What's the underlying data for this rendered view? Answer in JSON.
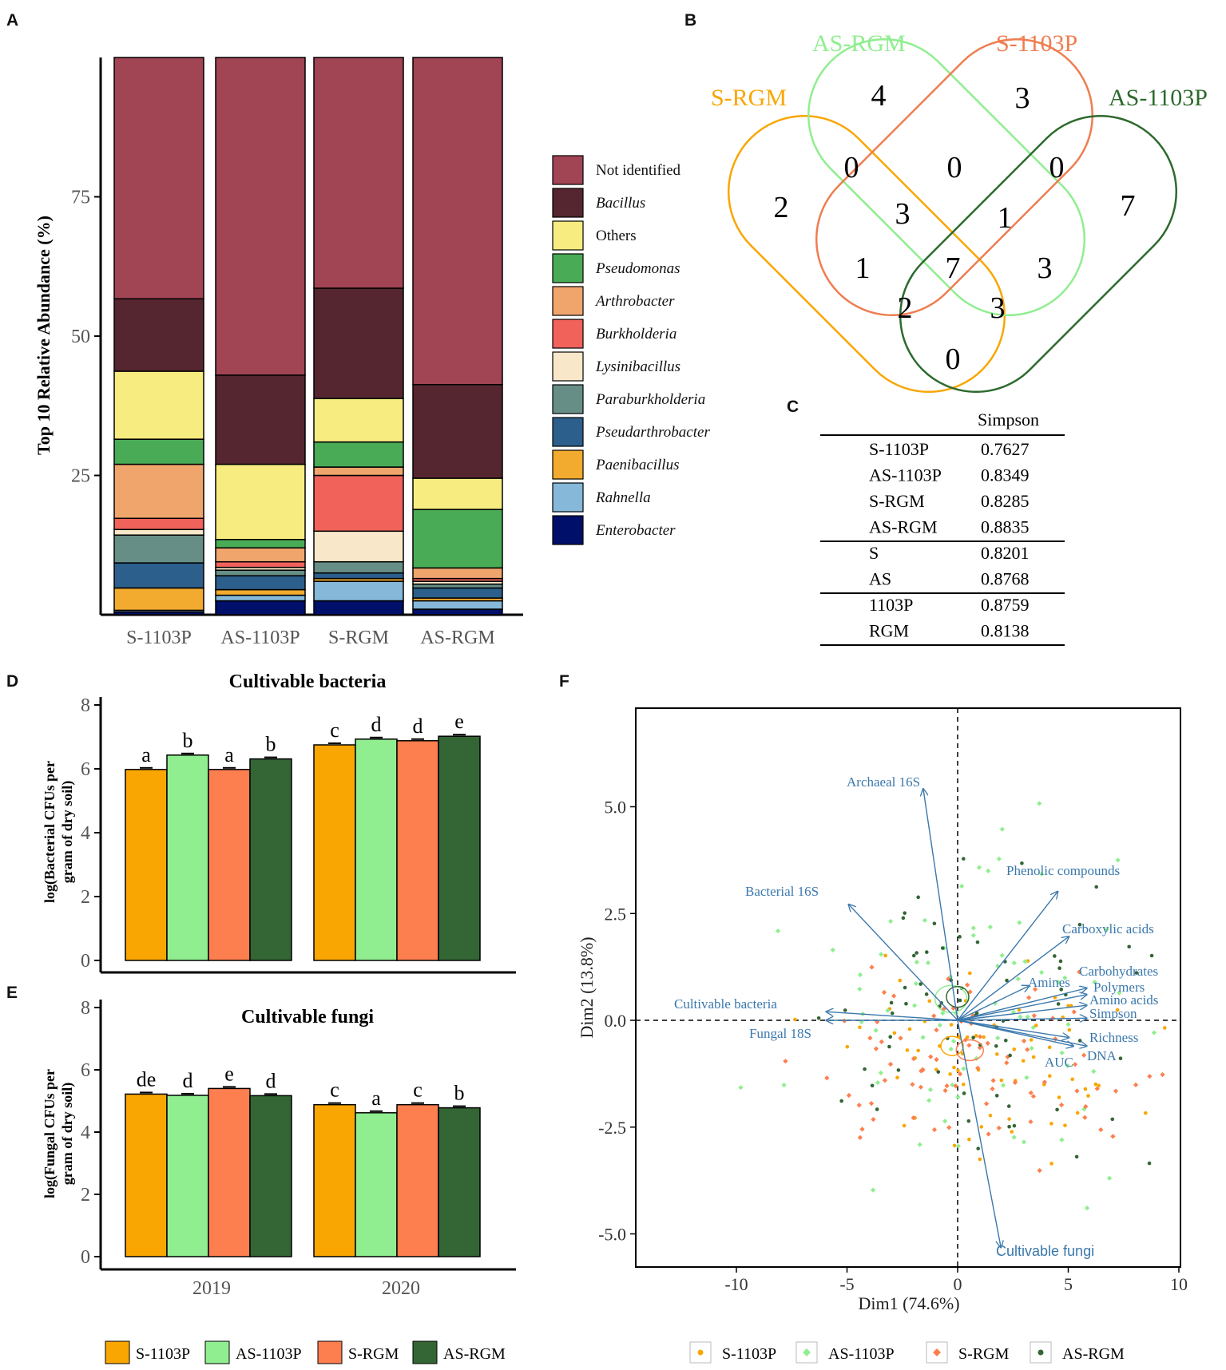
{
  "panels": {
    "A": "A",
    "B": "B",
    "C": "C",
    "D": "D",
    "E": "E",
    "F": "F"
  },
  "colors": {
    "S-1103P": "#f9a602",
    "AS-1103P": "#90ee90",
    "S-RGM": "#fd7f4f",
    "AS-RGM": "#336634",
    "vector": "#3a78ac"
  },
  "chart_data": [
    {
      "id": "A",
      "type": "bar",
      "stacked": true,
      "ylabel": "Top 10 Relative Abundance (%)",
      "yticks": [
        25,
        50,
        75
      ],
      "ylim": [
        0,
        100
      ],
      "categories": [
        "S-1103P",
        "AS-1103P",
        "S-RGM",
        "AS-RGM"
      ],
      "series": [
        {
          "name": "Enterobacter",
          "italic": true,
          "color": "#000f69",
          "values": [
            0.5,
            2.5,
            2.5,
            1.0
          ]
        },
        {
          "name": "Rahnella",
          "italic": true,
          "color": "#86b8d9",
          "values": [
            0.3,
            1.0,
            3.5,
            1.5
          ]
        },
        {
          "name": "Paenibacillus",
          "italic": true,
          "color": "#f2ab2e",
          "values": [
            4.0,
            1.0,
            0.5,
            0.5
          ]
        },
        {
          "name": "Pseudarthrobacter",
          "italic": true,
          "color": "#2c5f8b",
          "values": [
            4.5,
            2.5,
            1.0,
            1.8
          ]
        },
        {
          "name": "Paraburkholderia",
          "italic": true,
          "color": "#678e86",
          "values": [
            5.0,
            1.0,
            2.0,
            0.7
          ]
        },
        {
          "name": "Lysinibacillus",
          "italic": true,
          "color": "#f8e7c9",
          "values": [
            1.0,
            0.5,
            5.5,
            0.5
          ]
        },
        {
          "name": "Burkholderia",
          "italic": true,
          "color": "#f0625a",
          "values": [
            2.0,
            1.0,
            10.0,
            0.5
          ]
        },
        {
          "name": "Arthrobacter",
          "italic": true,
          "color": "#f0a56d",
          "values": [
            9.7,
            2.5,
            1.5,
            1.9
          ]
        },
        {
          "name": "Pseudomonas",
          "italic": true,
          "color": "#4aab57",
          "values": [
            4.5,
            1.5,
            4.5,
            10.5
          ]
        },
        {
          "name": "Others",
          "italic": false,
          "color": "#f7ec80",
          "values": [
            12.2,
            13.5,
            7.8,
            5.6
          ]
        },
        {
          "name": "Bacillus",
          "italic": true,
          "color": "#552630",
          "values": [
            13.0,
            16.0,
            19.8,
            16.8
          ]
        },
        {
          "name": "Not identified",
          "italic": false,
          "color": "#a14454",
          "values": [
            43.3,
            57.0,
            41.4,
            58.7
          ]
        }
      ]
    },
    {
      "id": "B",
      "type": "venn",
      "sets": [
        {
          "name": "S-RGM",
          "color": "#f9a602"
        },
        {
          "name": "AS-RGM",
          "color": "#90ee90"
        },
        {
          "name": "S-1103P",
          "color": "#ef7d50"
        },
        {
          "name": "AS-1103P",
          "color": "#2d6a2d"
        }
      ],
      "counts": [
        "4",
        "3",
        "2",
        "0",
        "0",
        "0",
        "7",
        "3",
        "1",
        "1",
        "7",
        "3",
        "2",
        "3",
        "0"
      ]
    },
    {
      "id": "C",
      "type": "table",
      "header": "Simpson",
      "groups": [
        [
          [
            "S-1103P",
            "0.7627"
          ],
          [
            "AS-1103P",
            "0.8349"
          ],
          [
            "S-RGM",
            "0.8285"
          ],
          [
            "AS-RGM",
            "0.8835"
          ]
        ],
        [
          [
            "S",
            "0.8201"
          ],
          [
            "AS",
            "0.8768"
          ]
        ],
        [
          [
            "1103P",
            "0.8759"
          ],
          [
            "RGM",
            "0.8138"
          ]
        ]
      ]
    },
    {
      "id": "D",
      "type": "bar",
      "title": "Cultivable bacteria",
      "ylabel_lines": [
        "log(Bacterial CFUs per",
        "gram of dry soil)"
      ],
      "ylim": [
        0,
        8
      ],
      "yticks": [
        0,
        2,
        4,
        6,
        8
      ],
      "groups": [
        "2019",
        "2020"
      ],
      "series_names": [
        "S-1103P",
        "AS-1103P",
        "S-RGM",
        "AS-RGM"
      ],
      "values": [
        [
          5.98,
          6.43,
          5.98,
          6.31
        ],
        [
          6.75,
          6.93,
          6.88,
          7.02
        ]
      ],
      "letters": [
        [
          "a",
          "b",
          "a",
          "b"
        ],
        [
          "c",
          "d",
          "d",
          "e"
        ]
      ]
    },
    {
      "id": "E",
      "type": "bar",
      "title": "Cultivable fungi",
      "ylabel_lines": [
        "log(Fungal CFUs per",
        "gram of dry soil)"
      ],
      "ylim": [
        0,
        8
      ],
      "yticks": [
        0,
        2,
        4,
        6,
        8
      ],
      "groups": [
        "2019",
        "2020"
      ],
      "series_names": [
        "S-1103P",
        "AS-1103P",
        "S-RGM",
        "AS-RGM"
      ],
      "values": [
        [
          5.22,
          5.18,
          5.4,
          5.17
        ],
        [
          4.88,
          4.62,
          4.88,
          4.78
        ]
      ],
      "letters": [
        [
          "de",
          "d",
          "e",
          "d"
        ],
        [
          "c",
          "a",
          "c",
          "b"
        ]
      ]
    },
    {
      "id": "F",
      "type": "scatter",
      "xlabel": "Dim1 (74.6%)",
      "ylabel": "Dim2 (13.8%)",
      "xlim": [
        -14,
        10.2
      ],
      "ylim": [
        -5.7,
        7.0
      ],
      "xticks": [
        "-10",
        "-5",
        "0",
        "5",
        "10"
      ],
      "yticks": [
        "5.0",
        "2.5",
        "0.0",
        "-2.5",
        "-5.0"
      ],
      "vectors": [
        {
          "name": "Archaeal 16S",
          "x": -1.55,
          "y": 5.4
        },
        {
          "name": "Bacterial 16S",
          "x": -4.9,
          "y": 2.7
        },
        {
          "name": "Phenolic compounds",
          "x": 4.5,
          "y": 3.0
        },
        {
          "name": "Carboxylic acids",
          "x": 5.0,
          "y": 1.95
        },
        {
          "name": "Amines",
          "x": 3.2,
          "y": 0.8
        },
        {
          "name": "Carbohydrates",
          "x": 5.8,
          "y": 0.75
        },
        {
          "name": "Polymers",
          "x": 5.8,
          "y": 0.6
        },
        {
          "name": "Amino acids",
          "x": 5.8,
          "y": 0.35
        },
        {
          "name": "Simpson",
          "x": 5.8,
          "y": 0.05
        },
        {
          "name": "Richness",
          "x": 5.8,
          "y": -0.6
        },
        {
          "name": "DNA",
          "x": 5.2,
          "y": -0.6
        },
        {
          "name": "AUC",
          "x": 5.0,
          "y": -0.4
        },
        {
          "name": "Cultivable bacteria",
          "x": -5.9,
          "y": 0.2
        },
        {
          "name": "Fungal 18S",
          "x": -5.9,
          "y": 0.0
        },
        {
          "name": "Cultivable fungi",
          "x": 1.95,
          "y": -5.3
        }
      ],
      "legend": [
        "S-1103P",
        "AS-1103P",
        "S-RGM",
        "AS-RGM"
      ]
    }
  ]
}
